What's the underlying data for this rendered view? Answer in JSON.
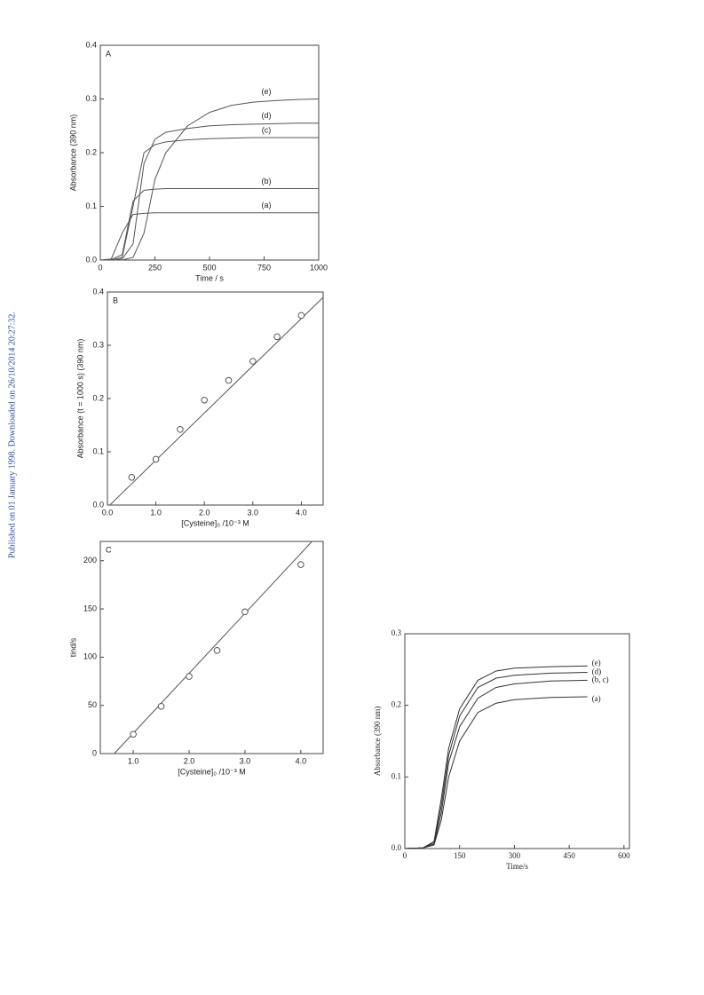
{
  "sidebar": "Published on 01 January 1998. Downloaded on 26/10/2014 20:27:32.",
  "chart_data": [
    {
      "type": "line",
      "panel_label": "A",
      "x_label": "Time / s",
      "y_label": "Absorbance  (390 nm)",
      "line_color": "#555555",
      "xlim": [
        0,
        1000
      ],
      "ylim": [
        0,
        0.4
      ],
      "xticks": [
        0,
        250,
        500,
        750,
        1000
      ],
      "yticks": [
        {
          "value": 0,
          "label": "0.0"
        },
        {
          "value": 0.1,
          "label": "0.1"
        },
        {
          "value": 0.2,
          "label": "0.2"
        },
        {
          "value": 0.3,
          "label": "0.3"
        },
        {
          "value": 0.4,
          "label": "0.4"
        }
      ],
      "x": [
        0,
        50,
        100,
        150,
        200,
        250,
        300,
        400,
        500,
        600,
        700,
        800,
        900,
        1000
      ],
      "series": [
        {
          "name": "(a)",
          "values": [
            0,
            0.002,
            0.05,
            0.085,
            0.087,
            0.088,
            0.088,
            0.088,
            0.088,
            0.088,
            0.088,
            0.088,
            0.088,
            0.088
          ]
        },
        {
          "name": "(b)",
          "values": [
            0,
            0.001,
            0.01,
            0.11,
            0.13,
            0.132,
            0.133,
            0.133,
            0.133,
            0.133,
            0.133,
            0.133,
            0.133,
            0.133
          ]
        },
        {
          "name": "(c)",
          "values": [
            0,
            0,
            0.005,
            0.1,
            0.2,
            0.215,
            0.22,
            0.224,
            0.226,
            0.227,
            0.228,
            0.228,
            0.228,
            0.228
          ]
        },
        {
          "name": "(d)",
          "values": [
            0,
            0,
            0.002,
            0.03,
            0.18,
            0.225,
            0.238,
            0.245,
            0.25,
            0.252,
            0.253,
            0.254,
            0.255,
            0.255
          ]
        },
        {
          "name": "(e)",
          "values": [
            0,
            0,
            0,
            0.005,
            0.05,
            0.15,
            0.2,
            0.25,
            0.275,
            0.288,
            0.294,
            0.297,
            0.299,
            0.3
          ]
        }
      ]
    },
    {
      "type": "scatter",
      "panel_label": "B",
      "x_label": "[Cysteine]₀ /10⁻³ M",
      "y_label": "Absorbance (t = 1000 s) (390 nm)",
      "line_color": "#555555",
      "xlim": [
        0,
        4.45
      ],
      "ylim": [
        0,
        0.4
      ],
      "xticks": [
        {
          "value": 0,
          "label": "0.0"
        },
        {
          "value": 1,
          "label": "1.0"
        },
        {
          "value": 2,
          "label": "2.0"
        },
        {
          "value": 3,
          "label": "3.0"
        },
        {
          "value": 4,
          "label": "4.0"
        }
      ],
      "yticks": [
        {
          "value": 0,
          "label": "0.0"
        },
        {
          "value": 0.1,
          "label": "0.1"
        },
        {
          "value": 0.2,
          "label": "0.2"
        },
        {
          "value": 0.3,
          "label": "0.3"
        },
        {
          "value": 0.4,
          "label": "0.4"
        }
      ],
      "points": {
        "x": [
          0.5,
          1,
          1.5,
          2,
          2.5,
          3,
          3.5,
          4
        ],
        "values": [
          0.052,
          0.086,
          0.142,
          0.197,
          0.234,
          0.27,
          0.316,
          0.356
        ]
      },
      "fit": {
        "x": [
          0.05,
          4.45
        ],
        "values": [
          0,
          0.39
        ]
      }
    },
    {
      "type": "scatter",
      "panel_label": "C",
      "x_label": "[Cysteine]₀ /10⁻³ M",
      "y_label": "tind/s",
      "line_color": "#555555",
      "xlim": [
        0.41,
        4.4
      ],
      "ylim": [
        0,
        220
      ],
      "xticks": [
        {
          "value": 1,
          "label": "1.0"
        },
        {
          "value": 2,
          "label": "2.0"
        },
        {
          "value": 3,
          "label": "3.0"
        },
        {
          "value": 4,
          "label": "4.0"
        }
      ],
      "yticks": [
        0,
        50,
        100,
        150,
        200
      ],
      "points": {
        "x": [
          1,
          1.5,
          2,
          2.5,
          3,
          4
        ],
        "values": [
          20,
          49,
          80,
          107,
          147,
          196
        ]
      },
      "fit": {
        "x": [
          0.66,
          4.2
        ],
        "values": [
          0,
          220
        ]
      }
    },
    {
      "type": "line",
      "x_label": "Time/s",
      "y_label": "Absorbance (390 nm)",
      "line_color": "#333333",
      "xlim": [
        0,
        615
      ],
      "ylim": [
        0,
        0.3
      ],
      "xticks": [
        0,
        150,
        300,
        450,
        600
      ],
      "yticks": [
        {
          "value": 0,
          "label": "0.0"
        },
        {
          "value": 0.1,
          "label": "0.1"
        },
        {
          "value": 0.2,
          "label": "0.2"
        },
        {
          "value": 0.3,
          "label": "0.3"
        }
      ],
      "x": [
        0,
        50,
        80,
        100,
        120,
        150,
        200,
        250,
        300,
        400,
        500
      ],
      "series": [
        {
          "name": "(a)",
          "values": [
            0,
            0.001,
            0.005,
            0.04,
            0.1,
            0.15,
            0.19,
            0.203,
            0.208,
            0.211,
            0.212
          ]
        },
        {
          "name": "(b, c)",
          "values": [
            0,
            0.001,
            0.006,
            0.05,
            0.12,
            0.17,
            0.21,
            0.225,
            0.23,
            0.234,
            0.235
          ]
        },
        {
          "name": "(d)",
          "values": [
            0,
            0.001,
            0.008,
            0.06,
            0.13,
            0.185,
            0.225,
            0.238,
            0.242,
            0.245,
            0.246
          ]
        },
        {
          "name": "(e)",
          "values": [
            0,
            0.001,
            0.01,
            0.07,
            0.14,
            0.195,
            0.235,
            0.248,
            0.252,
            0.254,
            0.255
          ]
        }
      ]
    }
  ]
}
